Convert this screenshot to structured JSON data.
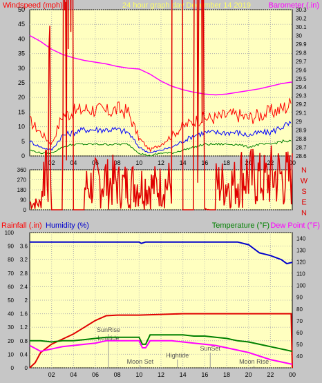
{
  "header": {
    "left_label": "Windspeed (mph)",
    "center_title": "24 hour graph day   December 14 2019",
    "right_label": "Barometer (.in)"
  },
  "direction_letters": [
    "N",
    "W",
    "S",
    "E",
    "N"
  ],
  "bottom_labels": {
    "rainfall": "Rainfall (.in)",
    "humidity": "Humidity (%)",
    "temperature": "Temperature (°F)",
    "dewpoint": "Dew Point (°F)"
  },
  "colors": {
    "background": "#c6c6c6",
    "plot_bg": "#ffffc0",
    "wind_gust": "#ff0000",
    "wind_avg": "#0000ff",
    "wind_min": "#008000",
    "barometer": "#ff00ff",
    "direction": "#e00000",
    "rain": "#e00000",
    "humidity": "#0000cc",
    "temperature": "#008000",
    "dewpoint": "#ff00ff",
    "header_title": "#ffff66"
  },
  "x_ticks": [
    "02",
    "04",
    "06",
    "08",
    "10",
    "12",
    "14",
    "16",
    "18",
    "20",
    "22",
    "00"
  ],
  "chart_data": [
    {
      "type": "line",
      "title": "24 hour graph day   December 14 2019",
      "x_range_hours": [
        0,
        24
      ],
      "left_axis": {
        "label": "Windspeed (mph)",
        "ylim": [
          0,
          50
        ],
        "ticks": [
          "0",
          "5",
          "10",
          "15",
          "20",
          "25",
          "30",
          "35",
          "40",
          "45",
          "50"
        ]
      },
      "right_axis": {
        "label": "Barometer (.in)",
        "ylim": [
          28.6,
          30.3
        ],
        "ticks": [
          "28.6",
          "28.7",
          "28.8",
          "28.9",
          "29",
          "29.1",
          "29.2",
          "29.3",
          "29.4",
          "29.5",
          "29.6",
          "29.7",
          "29.8",
          "29.9",
          "30",
          "30.1",
          "30.2",
          "30.3"
        ]
      },
      "series": [
        {
          "name": "Windspeed (mph)",
          "color": "#ff0000",
          "hours": [
            0,
            1,
            2,
            3,
            4,
            5,
            6,
            7,
            8,
            9,
            10,
            11,
            12,
            13,
            14,
            15,
            16,
            17,
            18,
            19,
            20,
            21,
            22,
            23,
            24
          ],
          "values": [
            12,
            8,
            4,
            14,
            15,
            16,
            16,
            15,
            16,
            15,
            6,
            2,
            4,
            7,
            10,
            12,
            13,
            13,
            14,
            14,
            13,
            14,
            15,
            16,
            18
          ]
        },
        {
          "hours": [
            0,
            1,
            2,
            3,
            4,
            5,
            6,
            7,
            8,
            9,
            10,
            11,
            12,
            13,
            14,
            15,
            16,
            17,
            18,
            19,
            20,
            21,
            22,
            23,
            24
          ],
          "values": [
            5,
            3,
            2,
            7,
            8,
            9,
            9,
            9,
            9,
            8,
            3,
            1,
            2,
            3,
            5,
            7,
            8,
            8,
            8,
            8,
            7,
            8,
            8,
            10,
            11
          ]
        },
        {
          "hours": [
            0,
            1,
            2,
            3,
            4,
            5,
            6,
            7,
            8,
            9,
            10,
            11,
            12,
            13,
            14,
            15,
            16,
            17,
            18,
            19,
            20,
            21,
            22,
            23,
            24
          ],
          "values": [
            2,
            1,
            1,
            3,
            4,
            4,
            4,
            4,
            4,
            4,
            1,
            0,
            1,
            1,
            2,
            3,
            4,
            4,
            4,
            4,
            3,
            4,
            4,
            5,
            5
          ]
        },
        {
          "name": "Barometer (.in)",
          "color": "#ff00ff",
          "hours": [
            0,
            1,
            2,
            3,
            4,
            5,
            6,
            7,
            8,
            9,
            10,
            11,
            12,
            13,
            14,
            15,
            16,
            17,
            18,
            19,
            20,
            21,
            22,
            23,
            24
          ],
          "values": [
            30.0,
            29.93,
            29.84,
            29.78,
            29.74,
            29.71,
            29.69,
            29.67,
            29.64,
            29.62,
            29.61,
            29.55,
            29.47,
            29.41,
            29.37,
            29.34,
            29.32,
            29.31,
            29.32,
            29.34,
            29.36,
            29.38,
            29.41,
            29.44,
            29.46
          ]
        }
      ]
    },
    {
      "type": "line",
      "axis": {
        "ylim": [
          0,
          360
        ],
        "ticks": [
          "0",
          "90",
          "180",
          "270",
          "360"
        ]
      },
      "x_range_hours": [
        0,
        24
      ],
      "series": [
        {
          "color": "#e00000",
          "hours": [
            0,
            1,
            1.3,
            1.5,
            1.7,
            2.0,
            3,
            4,
            5,
            6,
            7,
            8,
            9,
            9.8,
            10,
            10.3,
            10.6,
            11,
            12,
            13,
            14,
            15,
            16,
            17,
            18,
            19,
            20,
            21,
            22,
            23,
            24
          ],
          "values": [
            60,
            55,
            340,
            0,
            300,
            80,
            120,
            160,
            185,
            195,
            205,
            210,
            210,
            215,
            330,
            80,
            215,
            200,
            205,
            210,
            225,
            235,
            240,
            250,
            255,
            255,
            260,
            262,
            265,
            265,
            270
          ]
        }
      ]
    },
    {
      "type": "line",
      "x_range_hours": [
        0,
        24
      ],
      "left_axes": [
        {
          "label": "Humidity (%)",
          "ylim": [
            0,
            100
          ],
          "ticks": [
            "0",
            "10",
            "20",
            "30",
            "40",
            "50",
            "60",
            "70",
            "80",
            "90",
            "100"
          ]
        },
        {
          "label": "Rainfall (.in)",
          "ylim": [
            0,
            4
          ],
          "ticks": [
            "0",
            "0.4",
            "0.8",
            "1.2",
            "1.6",
            "2",
            "2.4",
            "2.8",
            "3.2",
            "3.6"
          ]
        }
      ],
      "right_axis": {
        "label": "Temperature (°F)",
        "ylim": [
          30,
          145
        ],
        "ticks": [
          "40",
          "50",
          "60",
          "70",
          "80",
          "90",
          "100",
          "110",
          "120",
          "130",
          "140"
        ]
      },
      "annotations": [
        {
          "text": "SunRise",
          "hour": 7.2
        },
        {
          "text": "Lowtide",
          "hour": 7.2
        },
        {
          "text": "Moon Set",
          "hour": 10.1
        },
        {
          "text": "Hightide",
          "hour": 13.5
        },
        {
          "text": "SunSet",
          "hour": 16.5
        },
        {
          "text": "Moon Rise",
          "hour": 20.5
        }
      ],
      "series": [
        {
          "name": "Humidity (%)",
          "color": "#0000cc",
          "hours": [
            0,
            2,
            4,
            6,
            8,
            10,
            10.2,
            10.6,
            11,
            14,
            16,
            18,
            19,
            20,
            20.5,
            21,
            22,
            23,
            23.5,
            24
          ],
          "values": [
            93,
            93,
            93,
            93,
            93,
            93,
            92,
            93,
            93,
            93,
            93,
            93,
            93,
            91,
            88,
            85,
            83,
            80,
            77,
            78
          ]
        },
        {
          "name": "Rainfall (.in)",
          "color": "#e00000",
          "hours": [
            0,
            0.5,
            1,
            2,
            3,
            4,
            5,
            6,
            7,
            8,
            10,
            12,
            14,
            16,
            18,
            20,
            22,
            23.9,
            24
          ],
          "values": [
            0,
            0.15,
            0.45,
            0.7,
            0.85,
            1.0,
            1.2,
            1.4,
            1.54,
            1.56,
            1.56,
            1.58,
            1.6,
            1.6,
            1.6,
            1.6,
            1.6,
            1.6,
            0
          ]
        },
        {
          "name": "Temperature (°F)",
          "color": "#008000",
          "hours": [
            0,
            1,
            2,
            3,
            4,
            5,
            6,
            7,
            8,
            9,
            10,
            10.3,
            10.6,
            11,
            12,
            13,
            14,
            15,
            16,
            17,
            18,
            19,
            20,
            21,
            22,
            23,
            24
          ],
          "values": [
            53,
            53,
            52,
            53,
            53,
            54,
            55,
            56,
            56,
            56,
            56,
            50,
            50,
            58,
            58,
            58,
            58,
            57,
            57,
            56,
            55,
            53,
            52,
            50,
            48,
            46,
            44
          ]
        },
        {
          "name": "Dew Point (°F)",
          "color": "#ff00ff",
          "hours": [
            0,
            1,
            2,
            3,
            4,
            5,
            6,
            7,
            8,
            9,
            10,
            10.3,
            10.6,
            11,
            12,
            13,
            14,
            15,
            16,
            17,
            18,
            19,
            20,
            21,
            22,
            23,
            24
          ],
          "values": [
            49,
            44,
            46,
            48,
            49,
            50,
            51,
            53,
            53,
            53,
            53,
            47,
            47,
            53,
            53,
            53,
            52,
            51,
            50,
            49,
            47,
            45,
            43,
            40,
            37,
            35,
            33
          ]
        }
      ]
    }
  ]
}
